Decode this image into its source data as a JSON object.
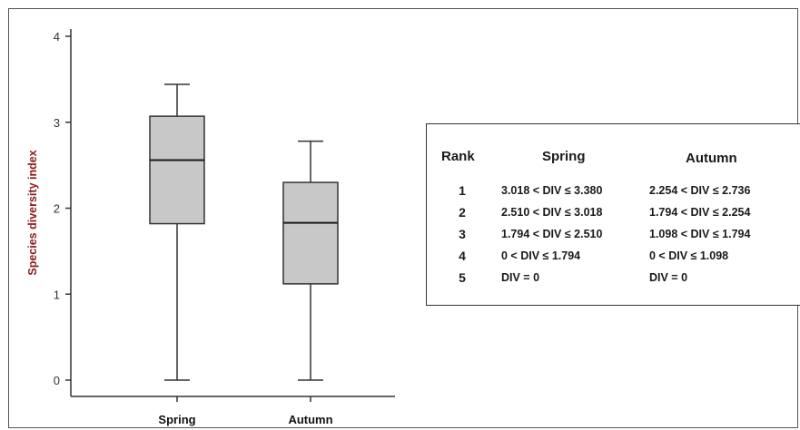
{
  "chart_data": {
    "type": "box",
    "ylabel": "Species diversity index",
    "xlabel": "",
    "ylim": [
      0,
      4
    ],
    "yticks": [
      "0",
      "1",
      "2",
      "3",
      "4"
    ],
    "categories": [
      "Spring",
      "Autumn"
    ],
    "boxes": [
      {
        "name": "Spring",
        "min": 0,
        "q1": 1.82,
        "median": 2.56,
        "q3": 3.07,
        "max": 3.44
      },
      {
        "name": "Autumn",
        "min": 0,
        "q1": 1.12,
        "median": 1.83,
        "q3": 2.3,
        "max": 2.78
      }
    ],
    "colors": {
      "box_fill": "#c8c8c8",
      "stroke": "#333333",
      "ylabel": "#8b1a1a"
    },
    "grid": false
  },
  "rank_table": {
    "headers": [
      "Rank",
      "Spring",
      "Autumn"
    ],
    "rows": [
      {
        "rank": "1",
        "spring": "3.018 < DIV ≤ 3.380",
        "autumn": "2.254 < DIV ≤ 2.736"
      },
      {
        "rank": "2",
        "spring": "2.510 < DIV ≤ 3.018",
        "autumn": "1.794 < DIV ≤ 2.254"
      },
      {
        "rank": "3",
        "spring": "1.794 < DIV ≤ 2.510",
        "autumn": "1.098 < DIV ≤ 1.794"
      },
      {
        "rank": "4",
        "spring": "0 < DIV ≤ 1.794",
        "autumn": "0 < DIV ≤ 1.098"
      },
      {
        "rank": "5",
        "spring": "DIV = 0",
        "autumn": "DIV = 0"
      }
    ]
  }
}
